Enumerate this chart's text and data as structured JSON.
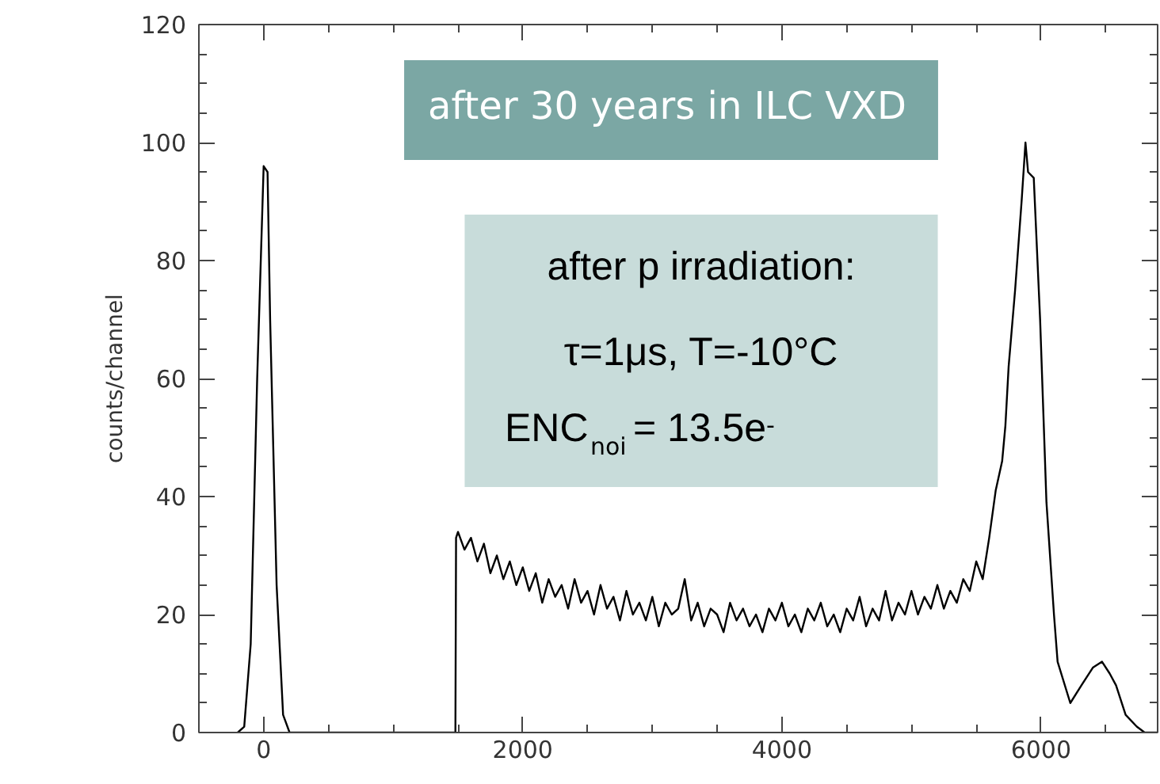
{
  "chart_data": {
    "type": "line",
    "ylabel": "counts/channel",
    "annotations": [
      "after 30 years in ILC VXD",
      "after p irradiation:",
      "τ=1μs, T=-10°C",
      "ENC$_{noi}$ = 13.5e$^{-}$"
    ],
    "series": [
      {
        "color": "#000000",
        "x": [
          -200,
          -150,
          -100,
          -50,
          0,
          30,
          50,
          100,
          150,
          200,
          1480,
          1485,
          1500,
          1550,
          1600,
          1650,
          1700,
          1750,
          1800,
          1850,
          1900,
          1950,
          2000,
          2050,
          2100,
          2150,
          2200,
          2250,
          2300,
          2350,
          2400,
          2450,
          2500,
          2550,
          2600,
          2650,
          2700,
          2750,
          2800,
          2850,
          2900,
          2950,
          3000,
          3050,
          3100,
          3150,
          3200,
          3250,
          3300,
          3350,
          3400,
          3450,
          3500,
          3550,
          3600,
          3650,
          3700,
          3750,
          3800,
          3850,
          3900,
          3950,
          4000,
          4050,
          4100,
          4150,
          4200,
          4250,
          4300,
          4350,
          4400,
          4450,
          4500,
          4550,
          4600,
          4650,
          4700,
          4750,
          4800,
          4850,
          4900,
          4950,
          5000,
          5050,
          5100,
          5150,
          5200,
          5250,
          5300,
          5350,
          5400,
          5450,
          5500,
          5550,
          5600,
          5650,
          5700,
          5725,
          5750,
          5800,
          5850,
          5880,
          5900,
          5944,
          5993,
          6042,
          6100,
          6128,
          6226,
          6312,
          6400,
          6471,
          6530,
          6579,
          6653,
          6739,
          6800,
          6900
        ],
        "values": [
          0,
          1,
          15,
          60,
          96,
          95,
          70,
          25,
          3,
          0,
          0,
          33,
          34,
          31,
          33,
          29,
          32,
          27,
          30,
          26,
          29,
          25,
          28,
          24,
          27,
          22,
          26,
          23,
          25,
          21,
          26,
          22,
          24,
          20,
          25,
          21,
          23,
          19,
          24,
          20,
          22,
          19,
          23,
          18,
          22,
          20,
          21,
          26,
          19,
          22,
          18,
          21,
          20,
          17,
          22,
          19,
          21,
          18,
          20,
          17,
          21,
          19,
          22,
          18,
          20,
          17,
          21,
          19,
          22,
          18,
          20,
          17,
          21,
          19,
          23,
          18,
          21,
          19,
          24,
          19,
          22,
          20,
          24,
          20,
          23,
          21,
          25,
          21,
          24,
          22,
          26,
          24,
          29,
          26,
          33,
          41,
          46,
          52,
          62,
          75,
          90,
          100,
          95,
          94,
          70,
          39,
          20,
          12,
          5,
          8,
          11,
          12,
          10,
          8,
          3,
          1,
          0,
          0
        ]
      }
    ],
    "xlim": [
      -500,
      6900
    ],
    "ylim": [
      0,
      120
    ],
    "xticks": [
      {
        "value": -500,
        "label": null
      },
      0,
      {
        "value": 500,
        "label": null
      },
      {
        "value": 1000,
        "label": null
      },
      {
        "value": 1500,
        "label": null
      },
      2000,
      {
        "value": 2500,
        "label": null
      },
      {
        "value": 3000,
        "label": null
      },
      {
        "value": 3500,
        "label": null
      },
      4000,
      {
        "value": 4500,
        "label": null
      },
      {
        "value": 5000,
        "label": null
      },
      {
        "value": 5500,
        "label": null
      },
      6000,
      {
        "value": 6500,
        "label": null
      }
    ],
    "yticks": [
      0,
      {
        "value": 5,
        "label": null
      },
      {
        "value": 10,
        "label": null
      },
      {
        "value": 15,
        "label": null
      },
      20,
      {
        "value": 25,
        "label": null
      },
      {
        "value": 30,
        "label": null
      },
      {
        "value": 35,
        "label": null
      },
      40,
      {
        "value": 45,
        "label": null
      },
      {
        "value": 50,
        "label": null
      },
      {
        "value": 55,
        "label": null
      },
      60,
      {
        "value": 65,
        "label": null
      },
      {
        "value": 70,
        "label": null
      },
      {
        "value": 75,
        "label": null
      },
      80,
      {
        "value": 85,
        "label": null
      },
      {
        "value": 90,
        "label": null
      },
      {
        "value": 95,
        "label": null
      },
      100,
      {
        "value": 105,
        "label": null
      },
      {
        "value": 110,
        "label": null
      },
      {
        "value": 115,
        "label": null
      },
      120
    ],
    "grid": false
  }
}
